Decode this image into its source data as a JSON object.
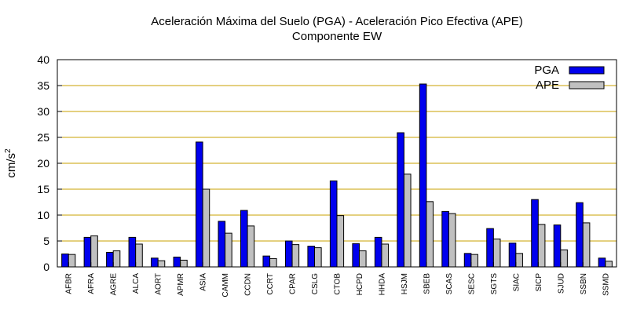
{
  "chart_data": {
    "type": "bar",
    "title": "Aceleración Máxima del Suelo (PGA) -  Aceleración Pico Efectiva (APE)",
    "subtitle": "Componente EW",
    "ylabel_base": "cm/s",
    "ylabel_exp": "2",
    "ylim": [
      0,
      40
    ],
    "yticks": [
      0,
      5,
      10,
      15,
      20,
      25,
      30,
      35,
      40
    ],
    "grid": true,
    "legend_position": "top-right",
    "categories": [
      "AFBR",
      "AFRA",
      "AGRE",
      "ALCA",
      "AORT",
      "APMR",
      "ASIA",
      "CAMM",
      "CCDN",
      "CCRT",
      "CPAR",
      "CSLG",
      "CTOB",
      "HCPD",
      "HHDA",
      "HSJM",
      "SBEB",
      "SCAS",
      "SESC",
      "SGTS",
      "SIAC",
      "SICP",
      "SJUD",
      "SSBN",
      "SSMD"
    ],
    "series": [
      {
        "name": "PGA",
        "color": "#0000ee",
        "values": [
          2.5,
          5.7,
          2.8,
          5.7,
          1.7,
          1.9,
          24.1,
          8.8,
          10.9,
          2.1,
          5.0,
          4.0,
          16.6,
          4.5,
          5.7,
          25.9,
          35.3,
          10.7,
          2.6,
          7.4,
          4.6,
          13.0,
          8.1,
          12.4,
          1.7
        ]
      },
      {
        "name": "APE",
        "color": "#c0c0c0",
        "values": [
          2.4,
          6.0,
          3.1,
          4.4,
          1.2,
          1.3,
          15.0,
          6.5,
          7.9,
          1.6,
          4.3,
          3.7,
          9.9,
          3.1,
          4.4,
          17.9,
          12.6,
          10.3,
          2.4,
          5.4,
          2.6,
          8.2,
          3.3,
          8.5,
          1.1
        ]
      }
    ]
  }
}
